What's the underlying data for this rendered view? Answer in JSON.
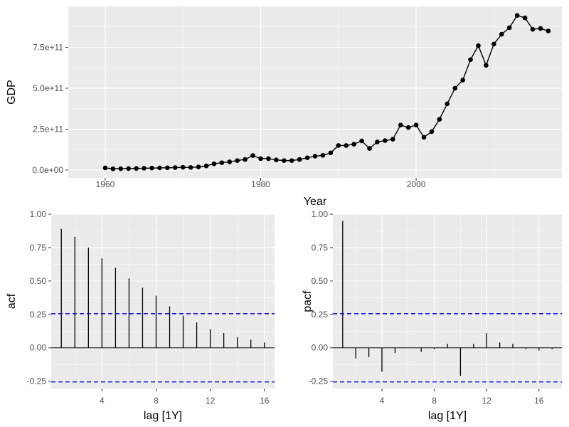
{
  "chart_data": [
    {
      "type": "line",
      "xlabel": "Year",
      "ylabel": "GDP",
      "xlim": [
        1955.25,
        2018.75
      ],
      "ylim": [
        -48000000000.0,
        1000000000000.0
      ],
      "xticks": [
        1960,
        1980,
        2000
      ],
      "xtick_labels": [
        "1960",
        "1980",
        "2000"
      ],
      "yticks": [
        0,
        250000000000.0,
        500000000000.0,
        750000000000.0
      ],
      "ytick_labels": [
        "0.0e+00",
        "2.5e+11",
        "5.0e+11",
        "7.5e+11"
      ],
      "grid": true,
      "series": [
        {
          "x": [
            1960,
            1961,
            1962,
            1963,
            1964,
            1965,
            1966,
            1967,
            1968,
            1969,
            1970,
            1971,
            1972,
            1973,
            1974,
            1975,
            1976,
            1977,
            1978,
            1979,
            1980,
            1981,
            1982,
            1983,
            1984,
            1985,
            1986,
            1987,
            1988,
            1989,
            1990,
            1991,
            1992,
            1993,
            1994,
            1995,
            1996,
            1997,
            1998,
            1999,
            2000,
            2001,
            2002,
            2003,
            2004,
            2005,
            2006,
            2007,
            2008,
            2009,
            2010,
            2011,
            2012,
            2013,
            2014,
            2015,
            2016,
            2017
          ],
          "values": [
            13000000000.0,
            8000000000.0,
            8500000000.0,
            9500000000.0,
            10000000000.0,
            11000000000.0,
            12000000000.0,
            13000000000.0,
            14000000000.0,
            15000000000.0,
            17000000000.0,
            16000000000.0,
            19000000000.0,
            25000000000.0,
            38000000000.0,
            45000000000.0,
            50000000000.0,
            58000000000.0,
            65000000000.0,
            89000000000.0,
            70000000000.0,
            70000000000.0,
            62000000000.0,
            58000000000.0,
            58000000000.0,
            65000000000.0,
            75000000000.0,
            85000000000.0,
            90000000000.0,
            105000000000.0,
            150000000000.0,
            150000000000.0,
            158000000000.0,
            178000000000.0,
            132000000000.0,
            172000000000.0,
            180000000000.0,
            188000000000.0,
            275000000000.0,
            260000000000.0,
            275000000000.0,
            200000000000.0,
            235000000000.0,
            310000000000.0,
            405000000000.0,
            500000000000.0,
            550000000000.0,
            675000000000.0,
            760000000000.0,
            640000000000.0,
            770000000000.0,
            830000000000.0,
            870000000000.0,
            945000000000.0,
            930000000000.0,
            860000000000.0,
            865000000000.0,
            850000000000.0
          ]
        }
      ]
    },
    {
      "type": "bar",
      "xlabel": "lag [1Y]",
      "ylabel": "acf",
      "xlim": [
        0.25,
        16.75
      ],
      "ylim": [
        -0.305,
        1.0
      ],
      "xticks": [
        4,
        8,
        12,
        16
      ],
      "xtick_labels": [
        "4",
        "8",
        "12",
        "16"
      ],
      "yticks": [
        -0.25,
        0,
        0.25,
        0.5,
        0.75,
        1.0
      ],
      "ytick_labels": [
        "-0.25",
        "0.00",
        "0.25",
        "0.50",
        "0.75",
        "1.00"
      ],
      "confidence_bounds": [
        0.255,
        -0.255
      ],
      "categories": [
        1,
        2,
        3,
        4,
        5,
        6,
        7,
        8,
        9,
        10,
        11,
        12,
        13,
        14,
        15,
        16
      ],
      "values": [
        0.89,
        0.83,
        0.75,
        0.67,
        0.6,
        0.52,
        0.45,
        0.39,
        0.31,
        0.24,
        0.19,
        0.14,
        0.11,
        0.08,
        0.06,
        0.04
      ],
      "grid": true
    },
    {
      "type": "bar",
      "xlabel": "lag [1Y]",
      "ylabel": "pacf",
      "xlim": [
        0.25,
        17.75
      ],
      "ylim": [
        -0.305,
        1.0
      ],
      "xticks": [
        4,
        8,
        12,
        16
      ],
      "xtick_labels": [
        "4",
        "8",
        "12",
        "16"
      ],
      "yticks": [
        -0.25,
        0,
        0.25,
        0.5,
        0.75,
        1.0
      ],
      "ytick_labels": [
        "-0.25",
        "0.00",
        "0.25",
        "0.50",
        "0.75",
        "1.00"
      ],
      "confidence_bounds": [
        0.255,
        -0.255
      ],
      "categories": [
        1,
        2,
        3,
        4,
        5,
        6,
        7,
        8,
        9,
        10,
        11,
        12,
        13,
        14,
        15,
        16,
        17
      ],
      "values": [
        0.95,
        -0.08,
        -0.07,
        -0.18,
        -0.04,
        0.0,
        -0.03,
        -0.01,
        0.03,
        -0.21,
        0.03,
        0.11,
        0.04,
        0.03,
        -0.01,
        -0.02,
        -0.01
      ],
      "grid": true
    }
  ],
  "colors": {
    "panel_background": "#EBEBEB",
    "grid": "#FFFFFF",
    "series": "#000000",
    "confidence": "#0000FF",
    "tick_text": "#4D4D4D"
  }
}
